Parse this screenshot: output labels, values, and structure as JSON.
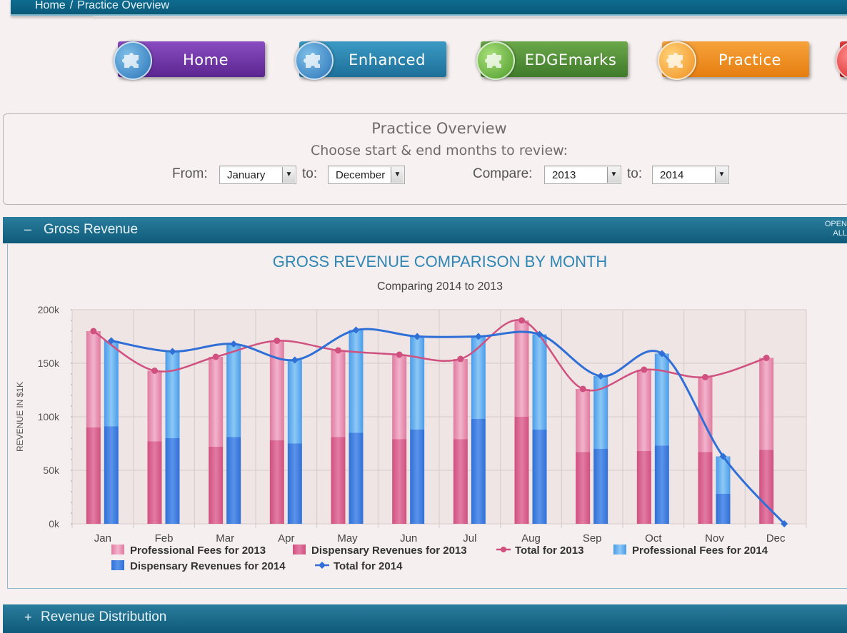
{
  "breadcrumb": {
    "home": "Home",
    "separator": "/",
    "current": "Practice Overview"
  },
  "nav": {
    "home": "Home",
    "enhanced": "Enhanced",
    "edgemarks": "EDGEmarks",
    "practice": "Practice"
  },
  "overview": {
    "title": "Practice Overview",
    "subtitle": "Choose start & end months to review:",
    "from_label": "From:",
    "from_value": "January",
    "to_label": "to:",
    "to_value": "December",
    "compare_label": "Compare:",
    "compare_value": "2013",
    "compare_to_label": "to:",
    "compare_to_value": "2014"
  },
  "gross_revenue": {
    "toggle": "–",
    "title": "Gross Revenue",
    "open_all_1": "OPEN",
    "open_all_2": "ALL"
  },
  "revenue_distribution": {
    "toggle": "+",
    "title": "Revenue Distribution"
  },
  "colors": {
    "pink": "#d0507f",
    "pink_light": "#e07aa0",
    "blue": "#2f6fd6",
    "blue_light": "#4a9bea",
    "title_blue": "#2e86b5"
  },
  "chart_data": {
    "type": "bar",
    "title": "GROSS REVENUE COMPARISON BY MONTH",
    "subtitle": "Comparing 2014 to 2013",
    "ylabel": "REVENUE IN $1K",
    "ylim": [
      0,
      200000
    ],
    "yticks": [
      "0k",
      "50k",
      "100k",
      "150k",
      "200k"
    ],
    "ytick_values": [
      0,
      50000,
      100000,
      150000,
      200000
    ],
    "categories": [
      "Jan",
      "Feb",
      "Mar",
      "Apr",
      "May",
      "Jun",
      "Jul",
      "Aug",
      "Sep",
      "Oct",
      "Nov",
      "Dec"
    ],
    "stacked": true,
    "grid": true,
    "legend_position": "bottom",
    "series": [
      {
        "name": "Professional Fees for 2013",
        "stack": "2013",
        "values": [
          90000,
          66000,
          84000,
          93000,
          81000,
          79000,
          75000,
          90000,
          59000,
          76000,
          70000,
          86000
        ]
      },
      {
        "name": "Dispensary Revenues for 2013",
        "stack": "2013",
        "values": [
          90000,
          77000,
          72000,
          78000,
          81000,
          79000,
          79000,
          100000,
          67000,
          68000,
          67000,
          69000
        ]
      },
      {
        "name": "Total for 2013",
        "type": "line",
        "values": [
          180000,
          143000,
          156000,
          171000,
          162000,
          158000,
          154000,
          190000,
          126000,
          144000,
          137000,
          155000
        ]
      },
      {
        "name": "Professional Fees for 2014",
        "stack": "2014",
        "values": [
          80000,
          81000,
          87000,
          78000,
          96000,
          87000,
          77000,
          89000,
          68000,
          86000,
          35000,
          null
        ]
      },
      {
        "name": "Dispensary Revenues for 2014",
        "stack": "2014",
        "values": [
          91000,
          80000,
          81000,
          75000,
          85000,
          88000,
          98000,
          88000,
          70000,
          73000,
          28000,
          null
        ]
      },
      {
        "name": "Total for 2014",
        "type": "line",
        "values": [
          171000,
          161000,
          168000,
          153000,
          181000,
          175000,
          175000,
          177000,
          138000,
          159000,
          63000,
          0
        ]
      }
    ]
  }
}
